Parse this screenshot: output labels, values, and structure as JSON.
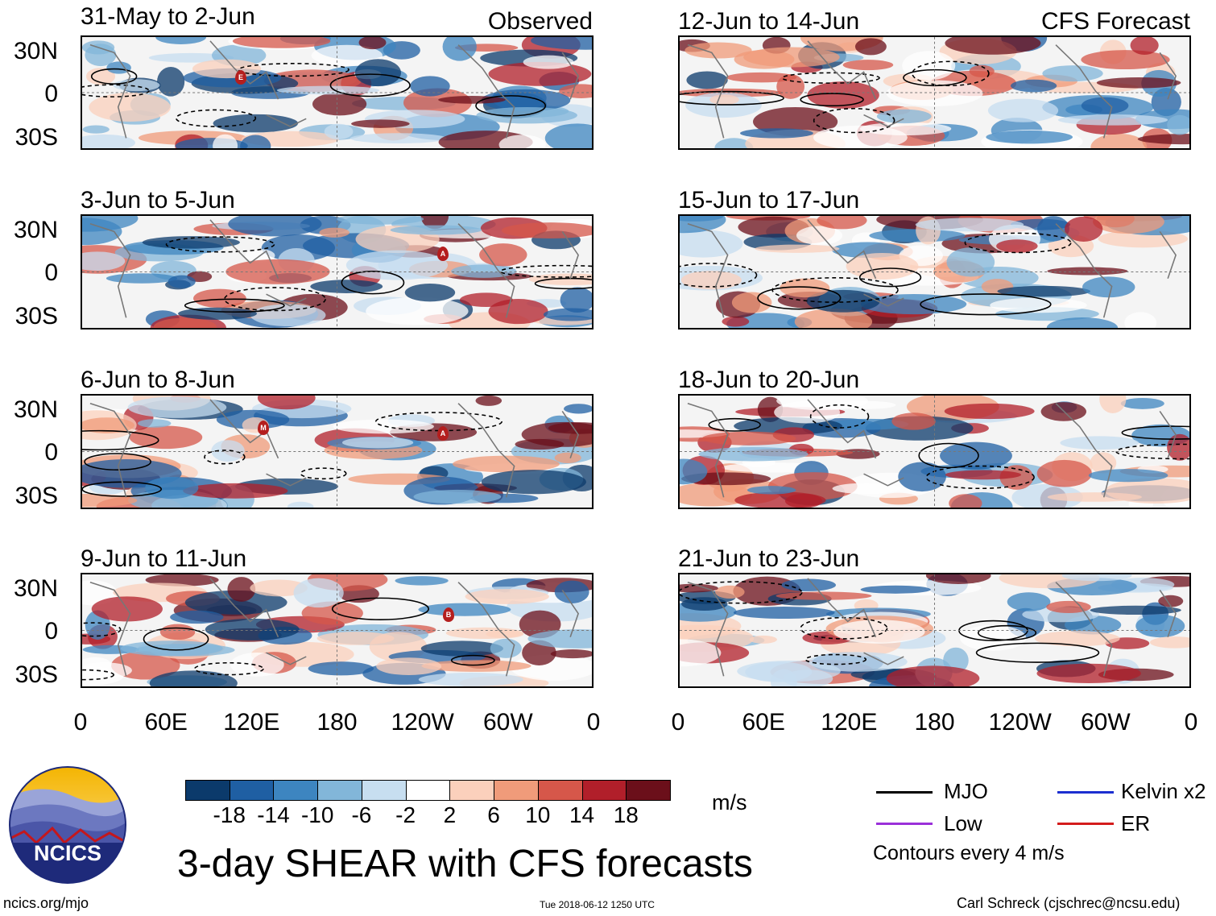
{
  "observed_label": "Observed",
  "forecast_label": "CFS Forecast",
  "panels_left": [
    {
      "title": "31-May to 2-Jun"
    },
    {
      "title": "3-Jun to 5-Jun"
    },
    {
      "title": "6-Jun to 8-Jun"
    },
    {
      "title": "9-Jun to 11-Jun"
    }
  ],
  "panels_right": [
    {
      "title": "12-Jun to 14-Jun"
    },
    {
      "title": "15-Jun to 17-Jun"
    },
    {
      "title": "18-Jun to 20-Jun"
    },
    {
      "title": "21-Jun to 23-Jun"
    }
  ],
  "lat_labels": [
    "30N",
    "0",
    "30S"
  ],
  "lon_labels": [
    "0",
    "60E",
    "120E",
    "180",
    "120W",
    "60W",
    "0"
  ],
  "markers": [
    {
      "text": "E"
    },
    {
      "text": "A"
    },
    {
      "text": "M"
    },
    {
      "text": "A"
    },
    {
      "text": "B"
    }
  ],
  "colorbar": {
    "labels": [
      "-18",
      "-14",
      "-10",
      "-6",
      "-2",
      "2",
      "6",
      "10",
      "14",
      "18"
    ],
    "colors": [
      "#0b3a6b",
      "#1f5fa3",
      "#3d85c0",
      "#82b6d9",
      "#c7def0",
      "#ffffff",
      "#fbd0bc",
      "#f09b7a",
      "#d6574a",
      "#b11f2a",
      "#6b0f1a"
    ],
    "unit": "m/s"
  },
  "title": "3-day SHEAR with CFS forecasts",
  "logo_text": "NCICS",
  "legend": {
    "items": [
      {
        "label": "MJO",
        "color": "#000000"
      },
      {
        "label": "Kelvin x2",
        "color": "#1c2fd0"
      },
      {
        "label": "Low",
        "color": "#9b30d9"
      },
      {
        "label": "ER",
        "color": "#d41c1c"
      }
    ],
    "contours_note": "Contours every 4 m/s"
  },
  "footer": {
    "url": "ncics.org/mjo",
    "timestamp": "Tue 2018-06-12 1250 UTC",
    "credit": "Carl Schreck (cjschrec@ncsu.edu)"
  }
}
